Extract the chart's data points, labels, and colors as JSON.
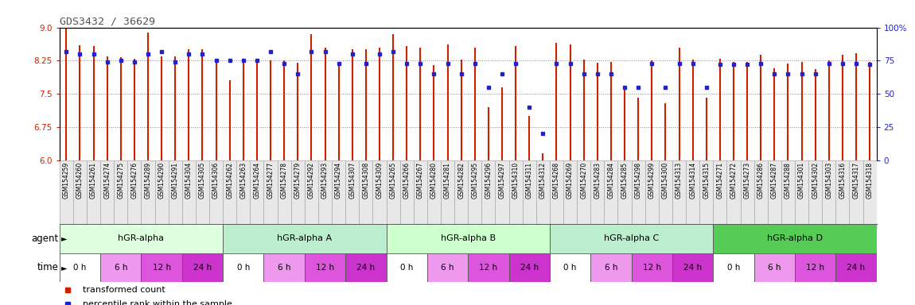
{
  "title": "GDS3432 / 36629",
  "samples": [
    "GSM154259",
    "GSM154260",
    "GSM154261",
    "GSM154274",
    "GSM154275",
    "GSM154276",
    "GSM154289",
    "GSM154290",
    "GSM154291",
    "GSM154304",
    "GSM154305",
    "GSM154306",
    "GSM154262",
    "GSM154263",
    "GSM154264",
    "GSM154277",
    "GSM154278",
    "GSM154279",
    "GSM154292",
    "GSM154293",
    "GSM154294",
    "GSM154307",
    "GSM154308",
    "GSM154309",
    "GSM154265",
    "GSM154266",
    "GSM154267",
    "GSM154280",
    "GSM154281",
    "GSM154282",
    "GSM154295",
    "GSM154296",
    "GSM154297",
    "GSM154310",
    "GSM154311",
    "GSM154312",
    "GSM154268",
    "GSM154269",
    "GSM154270",
    "GSM154283",
    "GSM154284",
    "GSM154285",
    "GSM154298",
    "GSM154299",
    "GSM154300",
    "GSM154313",
    "GSM154314",
    "GSM154315",
    "GSM154271",
    "GSM154272",
    "GSM154273",
    "GSM154286",
    "GSM154287",
    "GSM154288",
    "GSM154301",
    "GSM154302",
    "GSM154303",
    "GSM154316",
    "GSM154317",
    "GSM154318"
  ],
  "bar_values": [
    8.98,
    8.6,
    8.58,
    8.35,
    8.32,
    8.3,
    8.88,
    8.35,
    8.35,
    8.5,
    8.5,
    8.3,
    7.8,
    8.2,
    8.25,
    8.25,
    8.25,
    8.2,
    8.85,
    8.55,
    8.2,
    8.5,
    8.5,
    8.55,
    8.85,
    8.58,
    8.55,
    8.15,
    8.62,
    8.28,
    8.55,
    7.2,
    7.65,
    8.58,
    7.0,
    6.15,
    8.65,
    8.62,
    8.28,
    8.2,
    8.22,
    7.62,
    7.42,
    8.25,
    7.28,
    8.55,
    8.28,
    7.42,
    8.3,
    8.22,
    8.22,
    8.38,
    8.08,
    8.18,
    8.22,
    8.05,
    8.25,
    8.38,
    8.42,
    8.22
  ],
  "percentile_values": [
    82,
    80,
    80,
    74,
    75,
    74,
    80,
    82,
    74,
    80,
    80,
    75,
    75,
    75,
    75,
    82,
    73,
    65,
    82,
    82,
    73,
    80,
    73,
    80,
    82,
    73,
    73,
    65,
    73,
    65,
    73,
    55,
    65,
    73,
    40,
    20,
    73,
    73,
    65,
    65,
    65,
    55,
    55,
    73,
    55,
    73,
    73,
    55,
    72,
    72,
    72,
    73,
    65,
    65,
    65,
    65,
    73,
    73,
    73,
    72
  ],
  "ylim_left": [
    6.0,
    9.0
  ],
  "ylim_right": [
    0,
    100
  ],
  "yticks_left": [
    6.0,
    6.75,
    7.5,
    8.25,
    9.0
  ],
  "yticks_right": [
    0,
    25,
    50,
    75,
    100
  ],
  "yticklabels_right": [
    "0",
    "25",
    "50",
    "75",
    "100%"
  ],
  "bar_color": "#CC2200",
  "marker_color": "#2222CC",
  "title_color": "#555555",
  "left_tick_color": "#CC2200",
  "right_tick_color": "#2222CC",
  "grid_color": "#888888",
  "agent_groups": [
    {
      "label": "hGR-alpha",
      "start": 0,
      "end": 12,
      "color": "#ddffdd"
    },
    {
      "label": "hGR-alpha A",
      "start": 12,
      "end": 24,
      "color": "#bbeecc"
    },
    {
      "label": "hGR-alpha B",
      "start": 24,
      "end": 36,
      "color": "#ccffcc"
    },
    {
      "label": "hGR-alpha C",
      "start": 36,
      "end": 48,
      "color": "#bbeecc"
    },
    {
      "label": "hGR-alpha D",
      "start": 48,
      "end": 60,
      "color": "#55cc55"
    }
  ],
  "time_groups": [
    {
      "label": "0 h",
      "color": "#ffffff"
    },
    {
      "label": "6 h",
      "color": "#ee99ee"
    },
    {
      "label": "12 h",
      "color": "#dd55dd"
    },
    {
      "label": "24 h",
      "color": "#cc33cc"
    }
  ],
  "legend_items": [
    {
      "label": "transformed count",
      "color": "#CC2200"
    },
    {
      "label": "percentile rank within the sample",
      "color": "#2222CC"
    }
  ],
  "samples_bg_color": "#e8e8e8",
  "label_font_size": 8,
  "tick_font_size": 7.5,
  "sample_font_size": 5.5
}
